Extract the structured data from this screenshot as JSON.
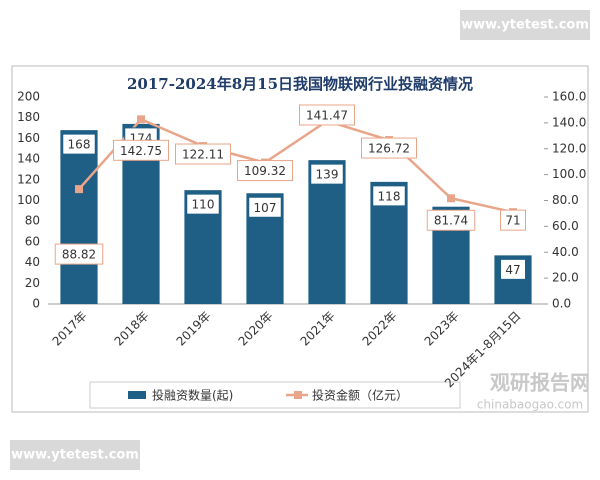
{
  "chart_data": {
    "type": "bar",
    "title": "2017-2024年8月15日我国物联网行业投融资情况",
    "categories": [
      "2017年",
      "2018年",
      "2019年",
      "2020年",
      "2021年",
      "2022年",
      "2023年",
      "2024年1-8月15日"
    ],
    "series": [
      {
        "name": "投融资数量(起)",
        "type": "bar",
        "color": "#1f5f86",
        "values": [
          168,
          174,
          110,
          107,
          139,
          118,
          94,
          47
        ]
      },
      {
        "name": "投资金额（亿元）",
        "type": "line",
        "axis": "y2",
        "color": "#e9a58a",
        "values": [
          88.82,
          142.75,
          122.11,
          109.32,
          141.47,
          126.72,
          81.74,
          71
        ]
      }
    ],
    "ylim": [
      0,
      200
    ],
    "yticks": [
      0,
      20,
      40,
      60,
      80,
      100,
      120,
      140,
      160,
      180,
      200
    ],
    "y2lim": [
      0,
      160
    ],
    "y2ticks": [
      {
        "value": 0,
        "label": "0.0"
      },
      {
        "value": 20,
        "label": "20.0"
      },
      {
        "value": 40,
        "label": "40.0"
      },
      {
        "value": 60,
        "label": "60.0"
      },
      {
        "value": 80,
        "label": "80.0"
      },
      {
        "value": 100,
        "label": "100.0"
      },
      {
        "value": 120,
        "label": "120.0"
      },
      {
        "value": 140,
        "label": "140.0"
      },
      {
        "value": 160,
        "label": "160.0"
      }
    ],
    "legend": "bottom"
  },
  "watermarks": {
    "site_top": "www.ytetest.com",
    "site_bottom": "www.ytetest.com",
    "brand": "观研报告网",
    "brand_url": "chinabaogao.com"
  }
}
